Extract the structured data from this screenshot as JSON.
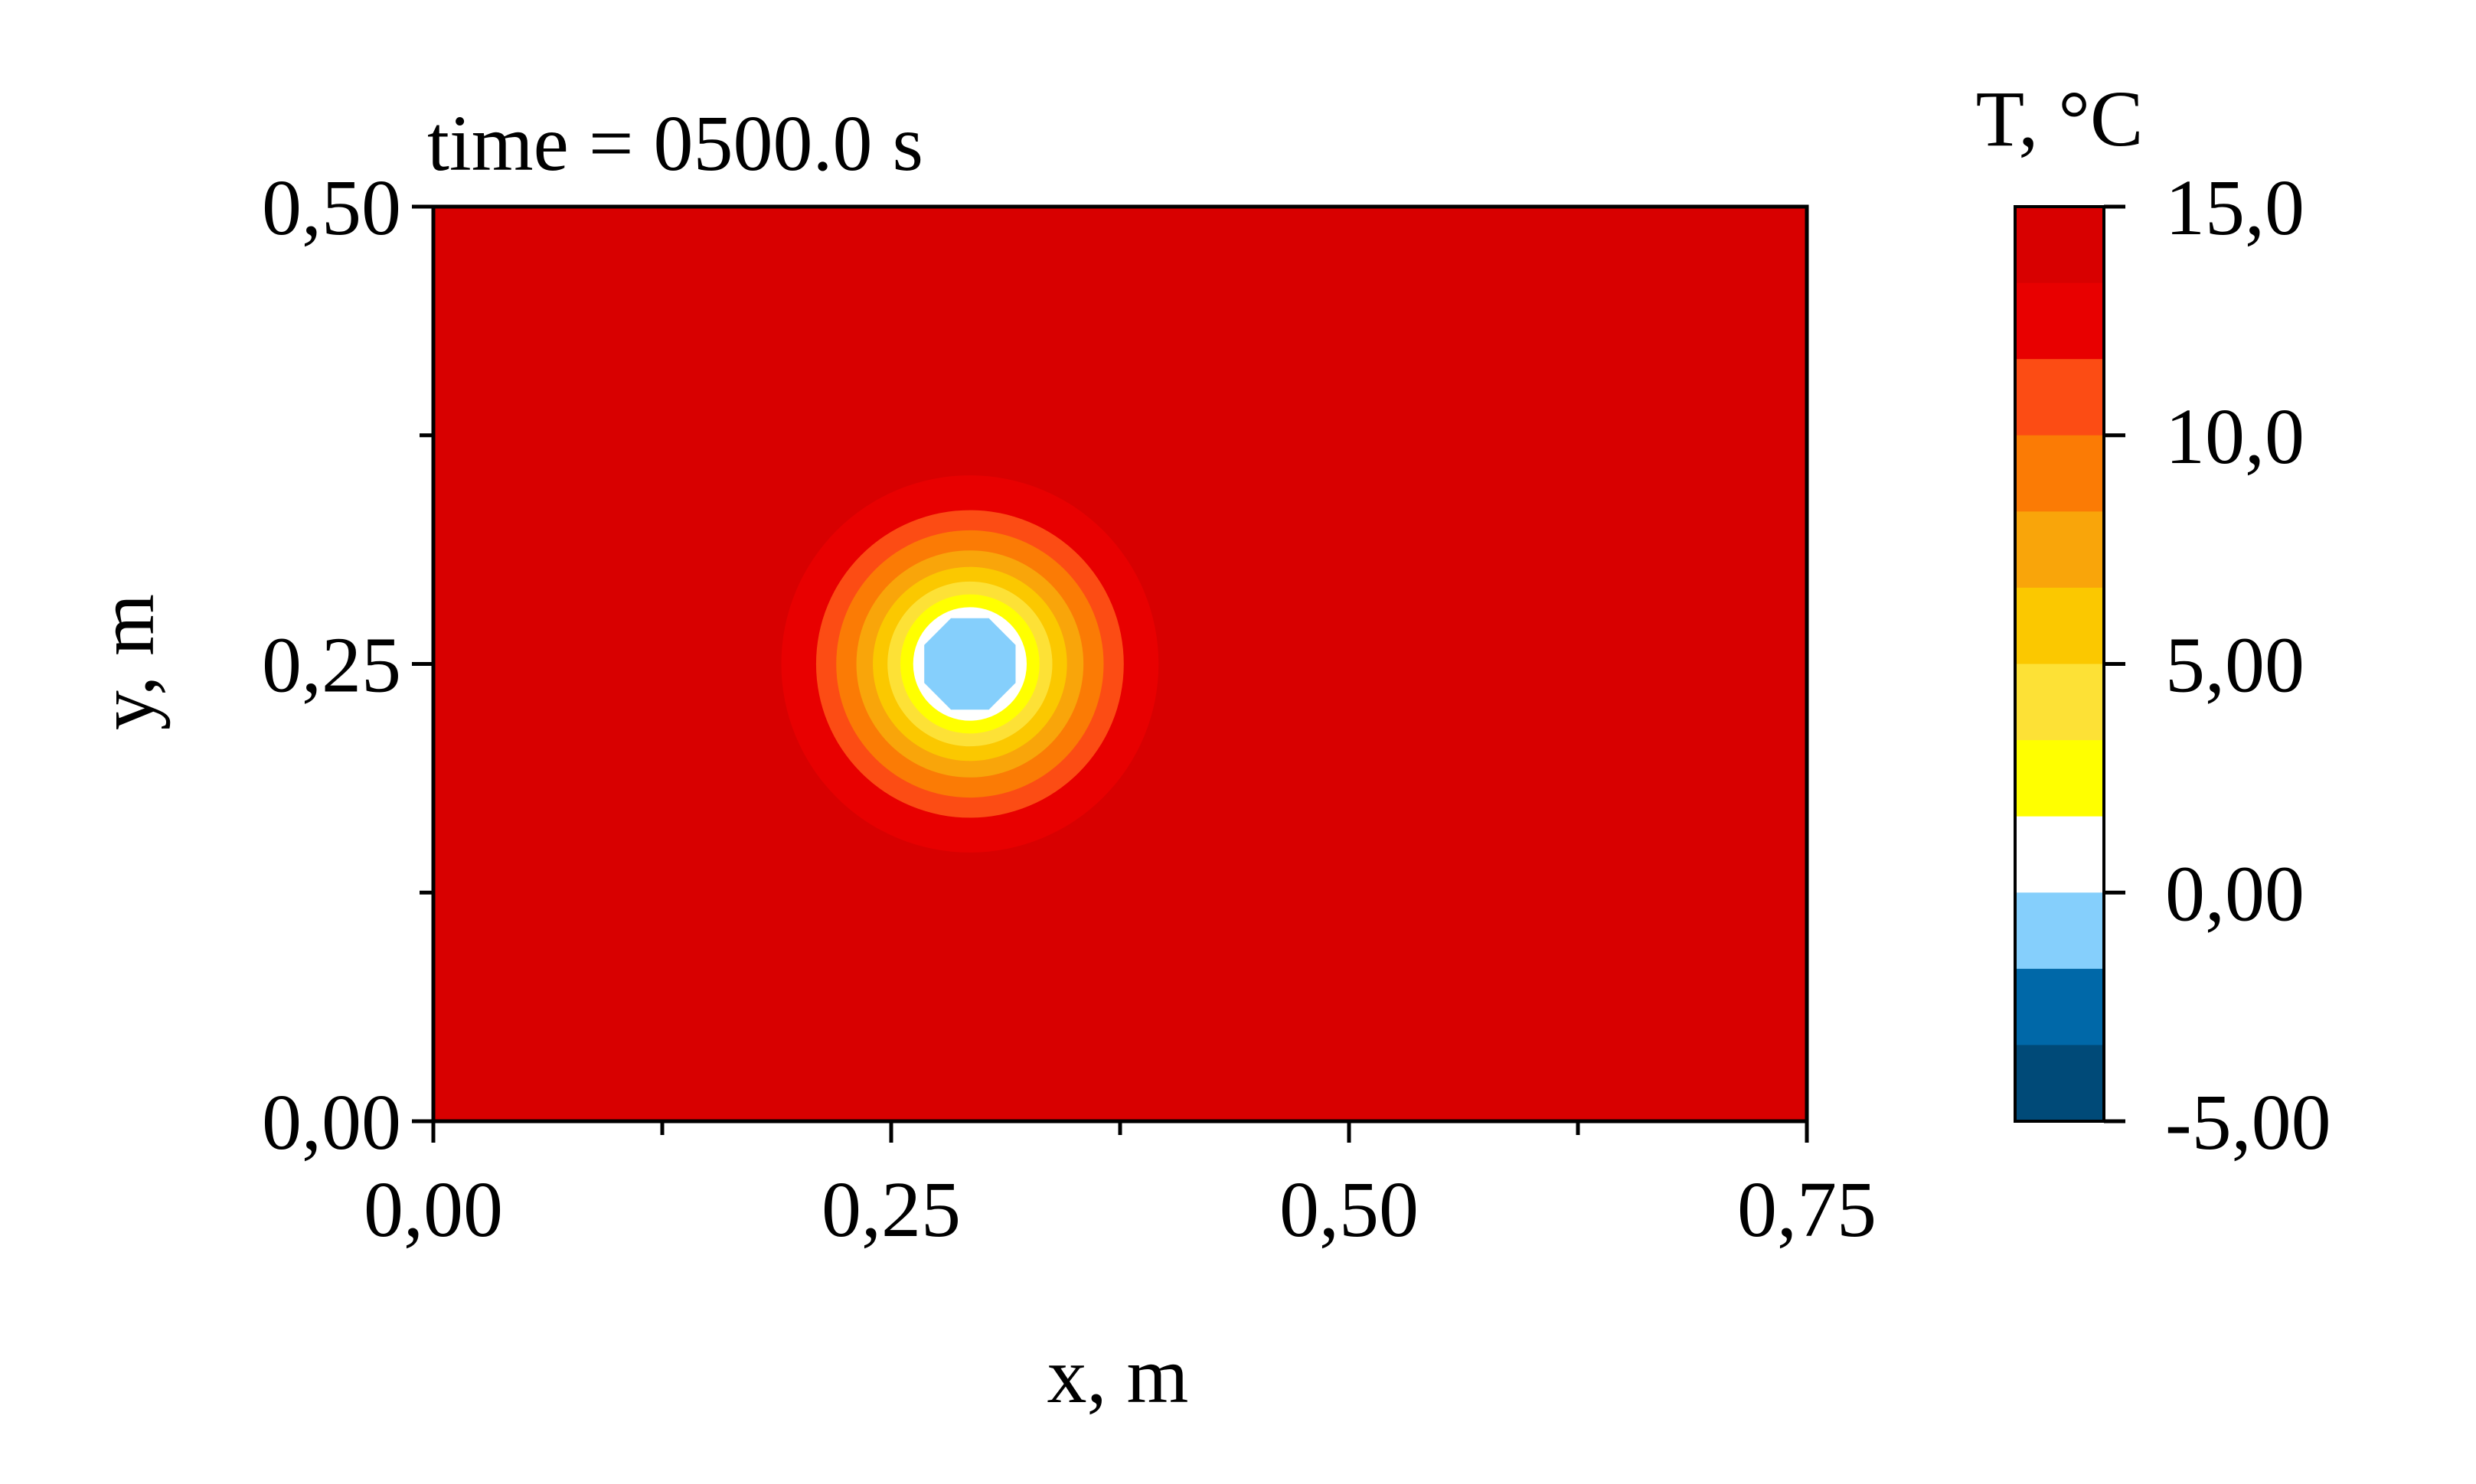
{
  "chart_data": {
    "type": "heatmap",
    "title": "time = 0500.0 s",
    "xlabel": "x, m",
    "ylabel": "y, m",
    "xlim": [
      0,
      0.75
    ],
    "ylim": [
      0,
      0.5
    ],
    "x_ticks": [
      "0,00",
      "0,25",
      "0,50",
      "0,75"
    ],
    "x_tick_values": [
      0,
      0.25,
      0.5,
      0.75
    ],
    "x_minor_ticks": [
      0.125,
      0.375,
      0.625
    ],
    "y_ticks": [
      "0,00",
      "0,25",
      "0,50"
    ],
    "y_tick_values": [
      0,
      0.25,
      0.5
    ],
    "y_minor_ticks": [
      0.125,
      0.375
    ],
    "background_value": 14,
    "field": {
      "description_center_x": 0.293,
      "description_center_y": 0.25,
      "contours": [
        {
          "radius_m": 0.103,
          "color": "#e80000"
        },
        {
          "radius_m": 0.084,
          "color": "#fc4c14"
        },
        {
          "radius_m": 0.073,
          "color": "#fb7b05"
        },
        {
          "radius_m": 0.062,
          "color": "#f9a50a"
        },
        {
          "radius_m": 0.053,
          "color": "#fbc800"
        },
        {
          "radius_m": 0.045,
          "color": "#fde136"
        },
        {
          "radius_m": 0.038,
          "color": "#ffff00"
        },
        {
          "radius_m": 0.031,
          "color": "#ffffff"
        },
        {
          "radius_m": 0.027,
          "color": "#85cffc"
        }
      ]
    },
    "colorbar": {
      "title": "T, °C",
      "range": [
        -5,
        15
      ],
      "ticks": [
        "15,0",
        "10,0",
        "5,00",
        "0,00",
        "-5,00"
      ],
      "tick_values": [
        15,
        10,
        5,
        0,
        -5
      ],
      "levels_top_to_bottom": [
        "#d80000",
        "#e80000",
        "#fc4c14",
        "#fb7b05",
        "#f9a50a",
        "#fbc800",
        "#fde136",
        "#ffff00",
        "#ffffff",
        "#85cffc",
        "#0068a8",
        "#004a78"
      ]
    },
    "colors": {
      "background_field": "#d80000",
      "frame": "#000000"
    }
  }
}
